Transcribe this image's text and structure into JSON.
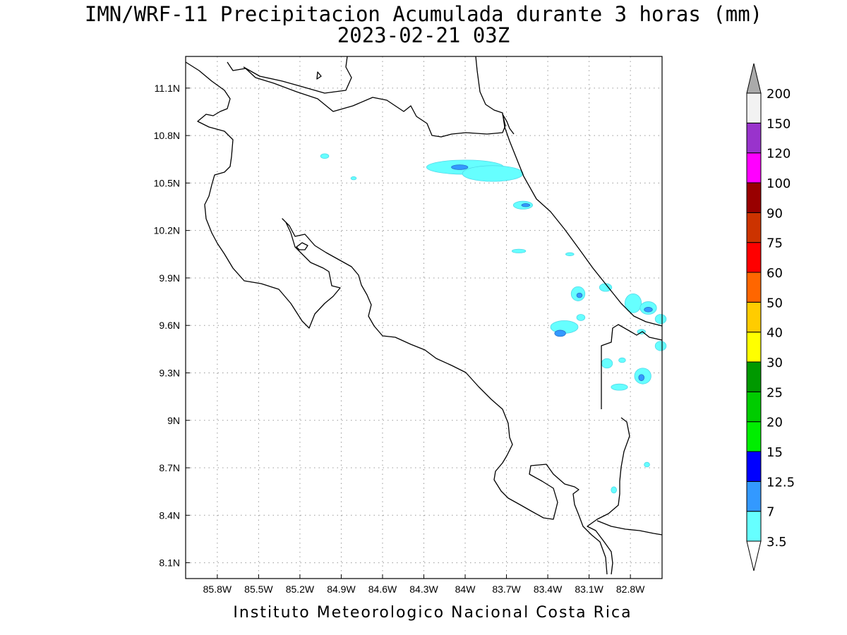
{
  "title_line1": "IMN/WRF-11 Precipitacion Acumulada durante 3 horas (mm)",
  "title_line2": "2023-02-21 03Z",
  "footer": "Instituto Meteorologico Nacional Costa Rica",
  "map_extent": {
    "lon": [
      -86.03,
      -82.57
    ],
    "lat": [
      8.0,
      11.3
    ]
  },
  "lat_ticks": [
    {
      "value": 11.1,
      "label": "11.1N"
    },
    {
      "value": 10.8,
      "label": "10.8N"
    },
    {
      "value": 10.5,
      "label": "10.5N"
    },
    {
      "value": 10.2,
      "label": "10.2N"
    },
    {
      "value": 9.9,
      "label": "9.9N"
    },
    {
      "value": 9.6,
      "label": "9.6N"
    },
    {
      "value": 9.3,
      "label": "9.3N"
    },
    {
      "value": 9.0,
      "label": "9N"
    },
    {
      "value": 8.7,
      "label": "8.7N"
    },
    {
      "value": 8.4,
      "label": "8.4N"
    },
    {
      "value": 8.1,
      "label": "8.1N"
    }
  ],
  "lon_ticks": [
    {
      "value": -85.8,
      "label": "85.8W"
    },
    {
      "value": -85.5,
      "label": "85.5W"
    },
    {
      "value": -85.2,
      "label": "85.2W"
    },
    {
      "value": -84.9,
      "label": "84.9W"
    },
    {
      "value": -84.6,
      "label": "84.6W"
    },
    {
      "value": -84.3,
      "label": "84.3W"
    },
    {
      "value": -84.0,
      "label": "84W"
    },
    {
      "value": -83.7,
      "label": "83.7W"
    },
    {
      "value": -83.4,
      "label": "83.4W"
    },
    {
      "value": -83.1,
      "label": "83.1W"
    },
    {
      "value": -82.8,
      "label": "82.8W"
    }
  ],
  "colorbar": {
    "levels": [
      "3.5",
      "7",
      "12.5",
      "15",
      "20",
      "25",
      "30",
      "40",
      "50",
      "60",
      "75",
      "90",
      "100",
      "120",
      "150",
      "200"
    ],
    "colors": [
      "#66ffff",
      "#3399ff",
      "#0000ff",
      "#00ee00",
      "#00cc00",
      "#009900",
      "#ffff00",
      "#ffcc00",
      "#ff6600",
      "#ff0000",
      "#cc3300",
      "#990000",
      "#ff00ff",
      "#9933cc",
      "#f2f2f2",
      "#aaaaaa"
    ],
    "top_triangle_color": "#aaaaaa",
    "bottom_triangle_color": "#ffffff"
  },
  "precip_areas": [
    {
      "lon": -84.0,
      "lat": 10.6,
      "rx": 0.28,
      "ry": 0.045,
      "level": 1
    },
    {
      "lon": -83.8,
      "lat": 10.56,
      "rx": 0.22,
      "ry": 0.05,
      "level": 1
    },
    {
      "lon": -84.04,
      "lat": 10.6,
      "rx": 0.06,
      "ry": 0.015,
      "level": 2
    },
    {
      "lon": -83.58,
      "lat": 10.36,
      "rx": 0.07,
      "ry": 0.025,
      "level": 1
    },
    {
      "lon": -83.56,
      "lat": 10.36,
      "rx": 0.03,
      "ry": 0.01,
      "level": 2
    },
    {
      "lon": -85.02,
      "lat": 10.67,
      "rx": 0.03,
      "ry": 0.015,
      "level": 1
    },
    {
      "lon": -84.81,
      "lat": 10.53,
      "rx": 0.02,
      "ry": 0.01,
      "level": 1
    },
    {
      "lon": -83.61,
      "lat": 10.07,
      "rx": 0.05,
      "ry": 0.012,
      "level": 1
    },
    {
      "lon": -83.24,
      "lat": 10.05,
      "rx": 0.03,
      "ry": 0.01,
      "level": 1
    },
    {
      "lon": -83.18,
      "lat": 9.8,
      "rx": 0.05,
      "ry": 0.045,
      "level": 1
    },
    {
      "lon": -83.17,
      "lat": 9.79,
      "rx": 0.02,
      "ry": 0.015,
      "level": 2
    },
    {
      "lon": -82.98,
      "lat": 9.84,
      "rx": 0.045,
      "ry": 0.025,
      "level": 1
    },
    {
      "lon": -82.78,
      "lat": 9.74,
      "rx": 0.06,
      "ry": 0.06,
      "level": 1
    },
    {
      "lon": -82.67,
      "lat": 9.71,
      "rx": 0.06,
      "ry": 0.04,
      "level": 1
    },
    {
      "lon": -82.67,
      "lat": 9.7,
      "rx": 0.03,
      "ry": 0.015,
      "level": 2
    },
    {
      "lon": -82.58,
      "lat": 9.64,
      "rx": 0.04,
      "ry": 0.03,
      "level": 1
    },
    {
      "lon": -83.28,
      "lat": 9.59,
      "rx": 0.1,
      "ry": 0.04,
      "level": 1
    },
    {
      "lon": -83.31,
      "lat": 9.55,
      "rx": 0.04,
      "ry": 0.02,
      "level": 2
    },
    {
      "lon": -83.16,
      "lat": 9.65,
      "rx": 0.03,
      "ry": 0.02,
      "level": 1
    },
    {
      "lon": -82.58,
      "lat": 9.47,
      "rx": 0.04,
      "ry": 0.03,
      "level": 1
    },
    {
      "lon": -82.72,
      "lat": 9.56,
      "rx": 0.03,
      "ry": 0.015,
      "level": 1
    },
    {
      "lon": -82.97,
      "lat": 9.36,
      "rx": 0.04,
      "ry": 0.03,
      "level": 1
    },
    {
      "lon": -82.86,
      "lat": 9.38,
      "rx": 0.025,
      "ry": 0.015,
      "level": 1
    },
    {
      "lon": -82.71,
      "lat": 9.28,
      "rx": 0.06,
      "ry": 0.05,
      "level": 1
    },
    {
      "lon": -82.72,
      "lat": 9.27,
      "rx": 0.02,
      "ry": 0.02,
      "level": 2
    },
    {
      "lon": -82.88,
      "lat": 9.21,
      "rx": 0.06,
      "ry": 0.02,
      "level": 1
    },
    {
      "lon": -82.92,
      "lat": 8.56,
      "rx": 0.02,
      "ry": 0.02,
      "level": 1
    },
    {
      "lon": -82.68,
      "lat": 8.72,
      "rx": 0.02,
      "ry": 0.015,
      "level": 1
    }
  ]
}
